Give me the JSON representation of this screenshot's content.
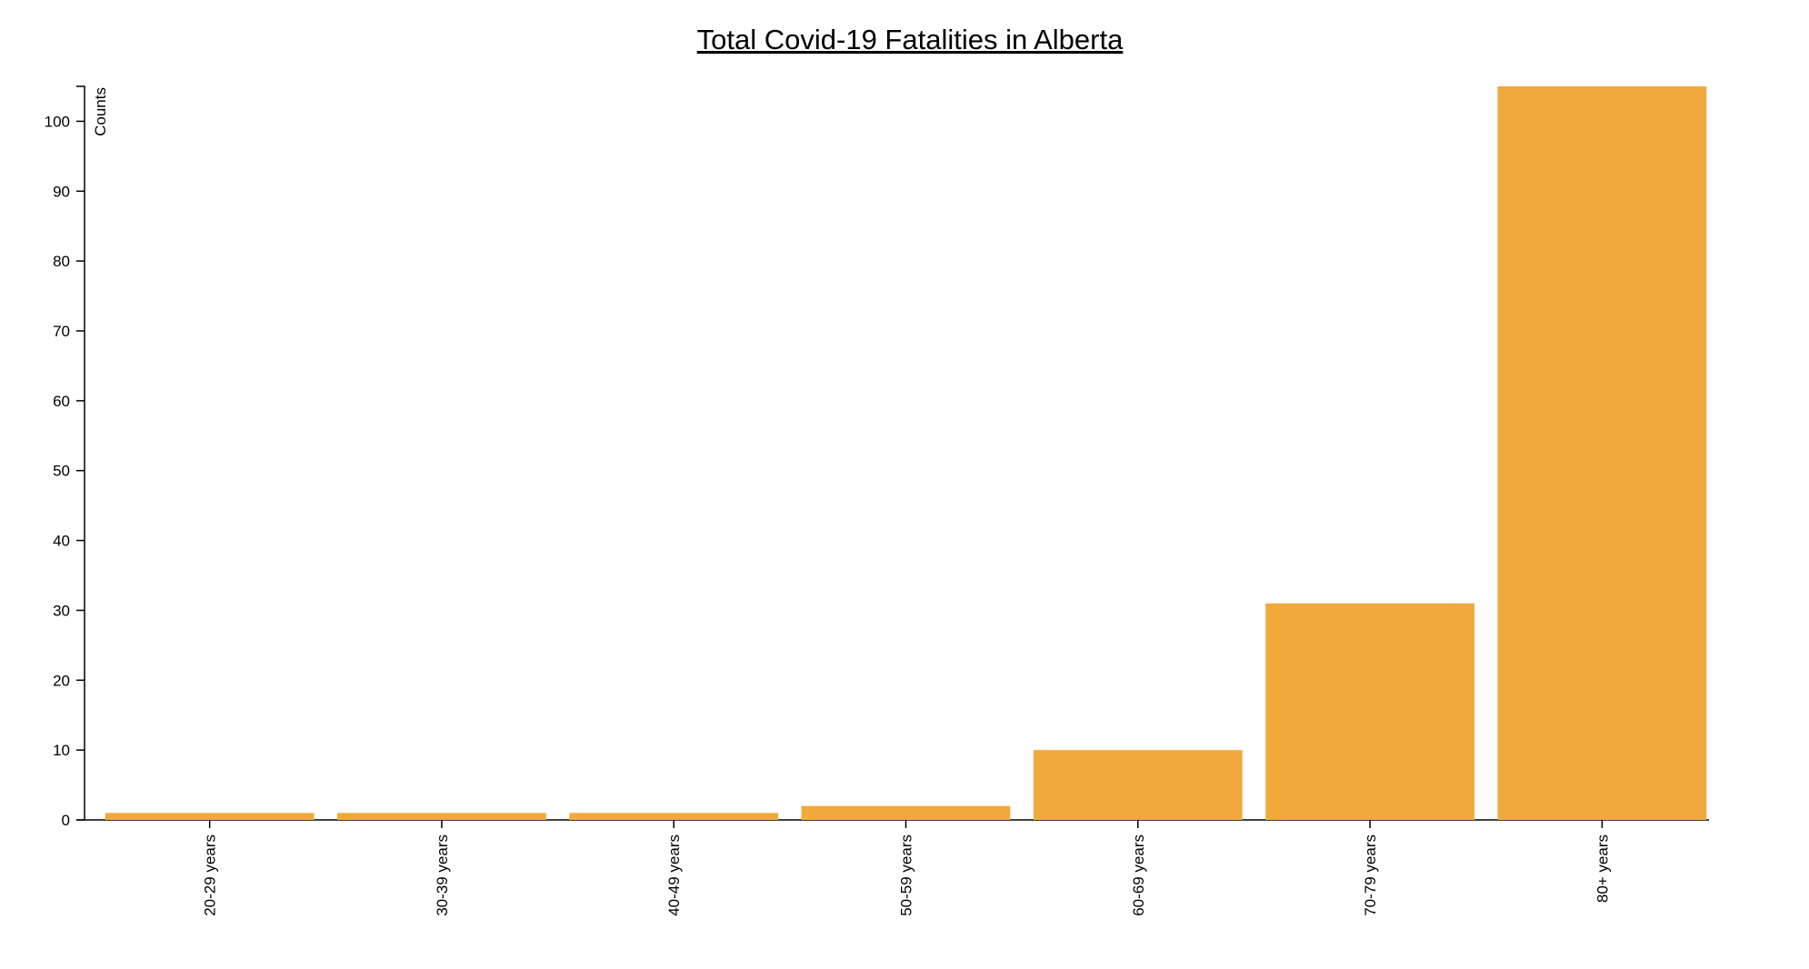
{
  "chart_data": {
    "type": "bar",
    "title": "Total Covid-19 Fatalities in Alberta",
    "xlabel": "",
    "ylabel": "Counts",
    "categories": [
      "20-29 years",
      "30-39 years",
      "40-49 years",
      "50-59 years",
      "60-69 years",
      "70-79 years",
      "80+ years"
    ],
    "values": [
      1,
      1,
      1,
      2,
      10,
      31,
      105
    ],
    "ylim": [
      0,
      105
    ],
    "yticks": [
      0,
      10,
      20,
      30,
      40,
      50,
      60,
      70,
      80,
      90,
      100
    ],
    "grid": false,
    "legend": "none",
    "bar_color": "#f2a93b"
  }
}
